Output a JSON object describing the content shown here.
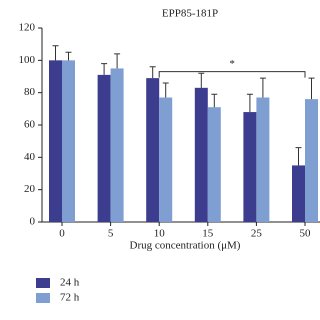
{
  "chart_data": {
    "type": "bar",
    "title": "EPP85-181P",
    "x_label": "Drug concentration (μM)",
    "categories": [
      "0",
      "5",
      "10",
      "15",
      "25",
      "50"
    ],
    "series": [
      {
        "name": "24 h",
        "color": "#3d3d8f",
        "values": [
          100,
          91,
          89,
          83,
          68,
          35
        ],
        "errors": [
          9,
          7,
          7,
          9,
          11,
          11
        ]
      },
      {
        "name": "72 h",
        "color": "#7f9fd2",
        "values": [
          100,
          95,
          77,
          71,
          77,
          76
        ],
        "errors": [
          5,
          9,
          9,
          8,
          12,
          13
        ]
      }
    ],
    "ylim": [
      0,
      120
    ],
    "yticks": [
      0,
      20,
      40,
      60,
      80,
      100,
      120
    ],
    "significance": {
      "label": "*",
      "from": 2,
      "to": 5,
      "level": 93
    },
    "legend": "bottom-left"
  }
}
